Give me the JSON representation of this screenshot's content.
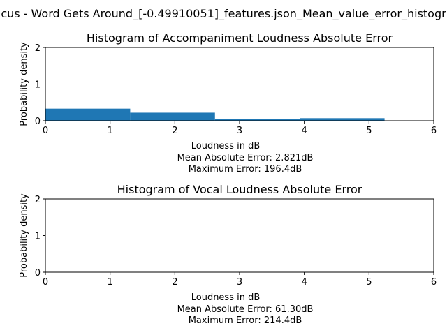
{
  "figure": {
    "suptitle": "cus - Word Gets Around_[-0.49910051]_features.json_Mean_value_error_histogr"
  },
  "chart_data": [
    {
      "type": "bar",
      "title": "Histogram of Accompaniment Loudness Absolute Error",
      "xlabel": "Loudness in dB",
      "ylabel": "Probability density",
      "xlim": [
        0,
        6
      ],
      "ylim": [
        0,
        2
      ],
      "xticks": [
        "0",
        "1",
        "2",
        "3",
        "4",
        "5",
        "6"
      ],
      "yticks": [
        "0",
        "1",
        "2"
      ],
      "bins": [
        {
          "x0": 0.0,
          "x1": 1.31,
          "density": 0.33
        },
        {
          "x0": 1.31,
          "x1": 2.62,
          "density": 0.22
        },
        {
          "x0": 2.62,
          "x1": 3.93,
          "density": 0.05
        },
        {
          "x0": 3.93,
          "x1": 5.24,
          "density": 0.07
        }
      ],
      "bar_color": "#1f77b4",
      "stats": [
        "Mean Absolute Error: 2.821dB",
        "Maximum Error: 196.4dB"
      ]
    },
    {
      "type": "bar",
      "title": "Histogram of Vocal Loudness Absolute Error",
      "xlabel": "Loudness in dB",
      "ylabel": "Probability density",
      "xlim": [
        0,
        6
      ],
      "ylim": [
        0,
        2
      ],
      "xticks": [
        "0",
        "1",
        "2",
        "3",
        "4",
        "5",
        "6"
      ],
      "yticks": [
        "0",
        "1",
        "2"
      ],
      "bins": [],
      "bar_color": "#1f77b4",
      "stats": [
        "Mean Absolute Error: 61.30dB",
        "Maximum Error: 214.4dB"
      ]
    }
  ]
}
